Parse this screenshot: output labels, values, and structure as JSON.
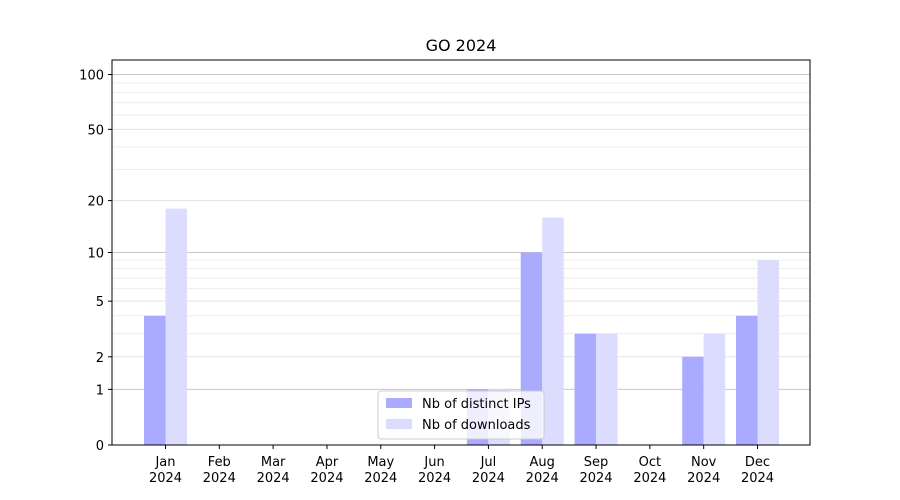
{
  "chart_data": {
    "type": "bar",
    "title": "GO 2024",
    "xlabel": "",
    "ylabel": "",
    "categories": [
      [
        "Jan",
        "2024"
      ],
      [
        "Feb",
        "2024"
      ],
      [
        "Mar",
        "2024"
      ],
      [
        "Apr",
        "2024"
      ],
      [
        "May",
        "2024"
      ],
      [
        "Jun",
        "2024"
      ],
      [
        "Jul",
        "2024"
      ],
      [
        "Aug",
        "2024"
      ],
      [
        "Sep",
        "2024"
      ],
      [
        "Oct",
        "2024"
      ],
      [
        "Nov",
        "2024"
      ],
      [
        "Dec",
        "2024"
      ]
    ],
    "series": [
      {
        "name": "Nb of distinct IPs",
        "color": "#aaaaff",
        "values": [
          4,
          0,
          0,
          0,
          0,
          0,
          1,
          10,
          3,
          0,
          2,
          4
        ]
      },
      {
        "name": "Nb of downloads",
        "color": "#dcdcff",
        "values": [
          18,
          0,
          0,
          0,
          0,
          0,
          1,
          16,
          3,
          0,
          3,
          9
        ]
      }
    ],
    "y_scale": "log(1+y)",
    "ylim": [
      0,
      120
    ],
    "yticks": [
      0,
      1,
      2,
      5,
      10,
      20,
      50,
      100
    ],
    "grid": "y",
    "legend_position": "lower-center"
  }
}
